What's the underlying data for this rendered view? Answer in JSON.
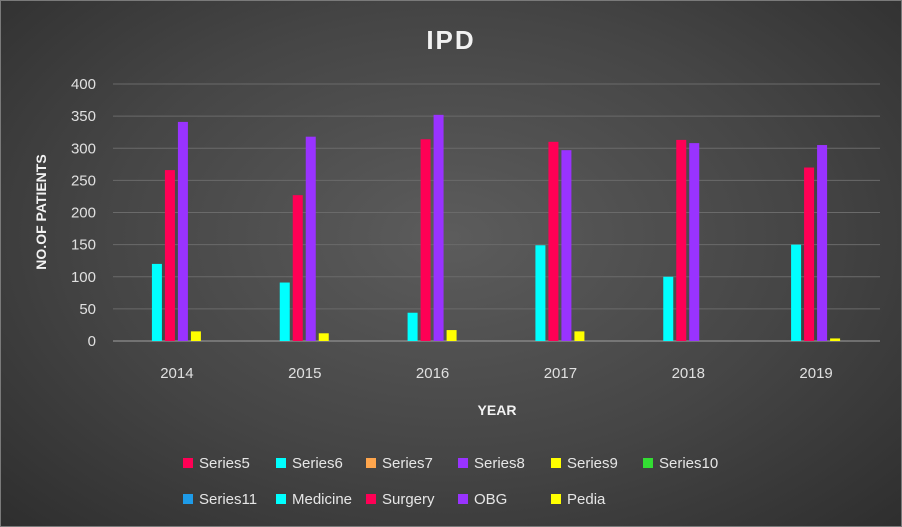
{
  "chart_data": {
    "type": "bar",
    "title": "IPD",
    "xlabel": "YEAR",
    "ylabel": "NO.OF PATIENTS",
    "categories": [
      "2014",
      "2015",
      "2016",
      "2017",
      "2018",
      "2019"
    ],
    "ylim": [
      0,
      400
    ],
    "yticks": [
      0,
      50,
      100,
      150,
      200,
      250,
      300,
      350,
      400
    ],
    "grid": true,
    "legend_position": "bottom",
    "series": [
      {
        "name": "Series5",
        "color": "#ff0055",
        "values": [
          0,
          0,
          0,
          0,
          0,
          0
        ]
      },
      {
        "name": "Series6",
        "color": "#00ffff",
        "values": [
          0,
          0,
          0,
          0,
          0,
          0
        ]
      },
      {
        "name": "Series7",
        "color": "#ffa64d",
        "values": [
          0,
          0,
          0,
          0,
          0,
          0
        ]
      },
      {
        "name": "Series8",
        "color": "#9933ff",
        "values": [
          0,
          0,
          0,
          0,
          0,
          0
        ]
      },
      {
        "name": "Series9",
        "color": "#ffff00",
        "values": [
          0,
          0,
          0,
          0,
          0,
          0
        ]
      },
      {
        "name": "Series10",
        "color": "#33dd33",
        "values": [
          0,
          0,
          0,
          0,
          0,
          0
        ]
      },
      {
        "name": "Series11",
        "color": "#1e9be8",
        "values": [
          0,
          0,
          0,
          0,
          0,
          0
        ]
      },
      {
        "name": "Medicine",
        "color": "#00ffff",
        "values": [
          120,
          91,
          44,
          149,
          100,
          150
        ]
      },
      {
        "name": "Surgery",
        "color": "#ff0055",
        "values": [
          266,
          227,
          314,
          310,
          313,
          270
        ]
      },
      {
        "name": "OBG",
        "color": "#9933ff",
        "values": [
          341,
          318,
          352,
          297,
          308,
          305
        ]
      },
      {
        "name": "Pedia",
        "color": "#ffff00",
        "values": [
          15,
          12,
          17,
          15,
          0,
          4
        ]
      }
    ]
  }
}
